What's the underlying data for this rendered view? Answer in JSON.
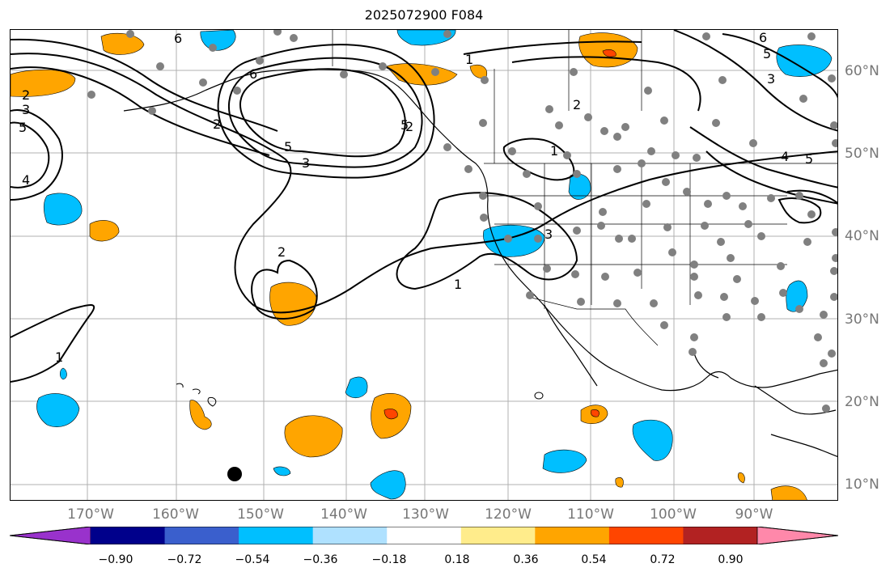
{
  "title": "2025072900 F084",
  "longitude_labels": [
    "170°W",
    "160°W",
    "150°W",
    "140°W",
    "130°W",
    "120°W",
    "110°W",
    "100°W",
    "90°W"
  ],
  "latitude_labels": [
    "60°N",
    "50°N",
    "40°N",
    "30°N",
    "20°N",
    "10°N"
  ],
  "colorbar": {
    "tick_labels": [
      "−0.90",
      "−0.72",
      "−0.54",
      "−0.36",
      "−0.18",
      "0.18",
      "0.36",
      "0.54",
      "0.72",
      "0.90"
    ],
    "colors": [
      "#9932cc",
      "#00008b",
      "#3a5fcd",
      "#00bfff",
      "#afe1ff",
      "#ffffff",
      "#ffec8b",
      "#ffa500",
      "#ff4500",
      "#b22222",
      "#ff88aa"
    ]
  },
  "contour_labels": [
    "6",
    "2",
    "3",
    "5",
    "2",
    "6",
    "5",
    "3",
    "5",
    "4",
    "2",
    "1",
    "2",
    "5",
    "6",
    "4",
    "5",
    "3",
    "3",
    "1",
    "2",
    "1",
    "1"
  ],
  "colors": {
    "station_dot": "#808080",
    "contour": "#000000",
    "grid": "#b0b0b0",
    "coast": "#000000"
  }
}
